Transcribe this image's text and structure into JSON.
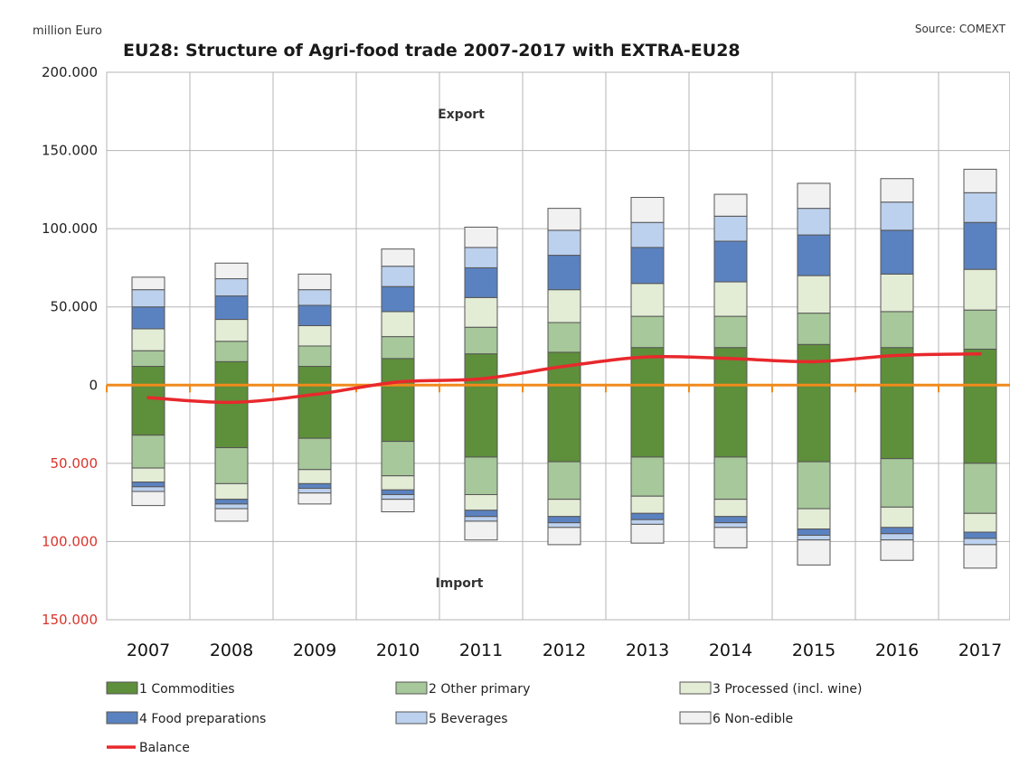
{
  "chart_data": {
    "type": "bar",
    "stacked": true,
    "title": "EU28: Structure of Agri-food trade 2007-2017 with EXTRA-EU28",
    "unit_label": "million Euro",
    "source": "Source: COMEXT",
    "annotations": {
      "top": "Export",
      "bottom": "Import"
    },
    "categories": [
      "2007",
      "2008",
      "2009",
      "2010",
      "2011",
      "2012",
      "2013",
      "2014",
      "2015",
      "2016",
      "2017"
    ],
    "ylim": [
      -150000,
      200000
    ],
    "yticks": [
      {
        "value": 200000,
        "label": "200.000",
        "color": "#222222"
      },
      {
        "value": 150000,
        "label": "150.000",
        "color": "#222222"
      },
      {
        "value": 100000,
        "label": "100.000",
        "color": "#222222"
      },
      {
        "value": 50000,
        "label": "50.000",
        "color": "#222222"
      },
      {
        "value": 0,
        "label": "0",
        "color": "#222222"
      },
      {
        "value": -50000,
        "label": "50.000",
        "color": "#d9342b"
      },
      {
        "value": -100000,
        "label": "100.000",
        "color": "#d9342b"
      },
      {
        "value": -150000,
        "label": "150.000",
        "color": "#d9342b"
      }
    ],
    "grid": true,
    "legend_position": "bottom",
    "export_series": [
      {
        "name": "1 Commodities",
        "color": "#5e8f3a",
        "values": [
          12000,
          15000,
          12000,
          17000,
          20000,
          21000,
          24000,
          24000,
          26000,
          24000,
          23000
        ]
      },
      {
        "name": "2 Other primary",
        "color": "#a7c89a",
        "values": [
          10000,
          13000,
          13000,
          14000,
          17000,
          19000,
          20000,
          20000,
          20000,
          23000,
          25000
        ]
      },
      {
        "name": "3 Processed (incl. wine)",
        "color": "#e3ecd5",
        "values": [
          14000,
          14000,
          13000,
          16000,
          19000,
          21000,
          21000,
          22000,
          24000,
          24000,
          26000
        ]
      },
      {
        "name": "4 Food preparations",
        "color": "#5b82c0",
        "values": [
          14000,
          15000,
          13000,
          16000,
          19000,
          22000,
          23000,
          26000,
          26000,
          28000,
          30000
        ]
      },
      {
        "name": "5 Beverages",
        "color": "#bcd1ee",
        "values": [
          11000,
          11000,
          10000,
          13000,
          13000,
          16000,
          16000,
          16000,
          17000,
          18000,
          19000
        ]
      },
      {
        "name": "6 Non-edible",
        "color": "#f1f1f1",
        "values": [
          8000,
          10000,
          10000,
          11000,
          13000,
          14000,
          16000,
          14000,
          16000,
          15000,
          15000
        ]
      }
    ],
    "import_series": [
      {
        "name": "1 Commodities",
        "color": "#5e8f3a",
        "values": [
          -32000,
          -40000,
          -34000,
          -36000,
          -46000,
          -49000,
          -46000,
          -46000,
          -49000,
          -47000,
          -50000
        ]
      },
      {
        "name": "2 Other primary",
        "color": "#a7c89a",
        "values": [
          -21000,
          -23000,
          -20000,
          -22000,
          -24000,
          -24000,
          -25000,
          -27000,
          -30000,
          -31000,
          -32000
        ]
      },
      {
        "name": "3 Processed (incl. wine)",
        "color": "#e3ecd5",
        "values": [
          -9000,
          -10000,
          -9000,
          -9000,
          -10000,
          -11000,
          -11000,
          -11000,
          -13000,
          -13000,
          -12000
        ]
      },
      {
        "name": "4 Food preparations",
        "color": "#5b82c0",
        "values": [
          -3000,
          -3000,
          -3000,
          -3000,
          -4000,
          -4000,
          -4000,
          -4000,
          -4000,
          -4000,
          -4000
        ]
      },
      {
        "name": "5 Beverages",
        "color": "#bcd1ee",
        "values": [
          -3000,
          -3000,
          -3000,
          -3000,
          -3000,
          -3000,
          -3000,
          -3000,
          -3000,
          -4000,
          -4000
        ]
      },
      {
        "name": "6 Non-edible",
        "color": "#f1f1f1",
        "values": [
          -9000,
          -8000,
          -7000,
          -8000,
          -12000,
          -11000,
          -12000,
          -13000,
          -16000,
          -13000,
          -15000
        ]
      }
    ],
    "balance": {
      "name": "Balance",
      "color": "#e8282c",
      "values": [
        -8000,
        -11000,
        -6000,
        2000,
        4000,
        12000,
        18000,
        17000,
        15000,
        19000,
        20000
      ]
    },
    "zero_line_color": "#f08a1c"
  }
}
